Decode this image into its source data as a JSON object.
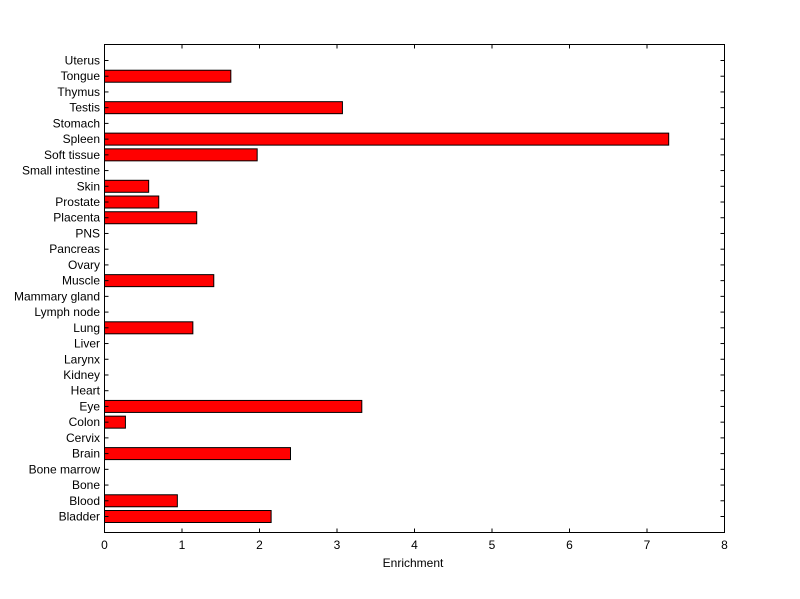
{
  "chart_data": {
    "type": "bar",
    "orientation": "horizontal",
    "title": "",
    "xlabel": "Enrichment",
    "ylabel": "",
    "xlim": [
      0,
      8
    ],
    "xticks": [
      0,
      1,
      2,
      3,
      4,
      5,
      6,
      7,
      8
    ],
    "grid": false,
    "bar_color": "#ff0000",
    "edge_color": "#000000",
    "categories": [
      "Uterus",
      "Tongue",
      "Thymus",
      "Testis",
      "Stomach",
      "Spleen",
      "Soft tissue",
      "Small intestine",
      "Skin",
      "Prostate",
      "Placenta",
      "PNS",
      "Pancreas",
      "Ovary",
      "Muscle",
      "Mammary gland",
      "Lymph node",
      "Lung",
      "Liver",
      "Larynx",
      "Kidney",
      "Heart",
      "Eye",
      "Colon",
      "Cervix",
      "Brain",
      "Bone marrow",
      "Bone",
      "Blood",
      "Bladder"
    ],
    "values": [
      0,
      1.63,
      0,
      3.07,
      0,
      7.28,
      1.97,
      0,
      0.57,
      0.7,
      1.19,
      0,
      0,
      0,
      1.41,
      0,
      0,
      1.14,
      0,
      0,
      0,
      0,
      3.32,
      0.27,
      0,
      2.4,
      0,
      0,
      0.94,
      2.15
    ]
  }
}
